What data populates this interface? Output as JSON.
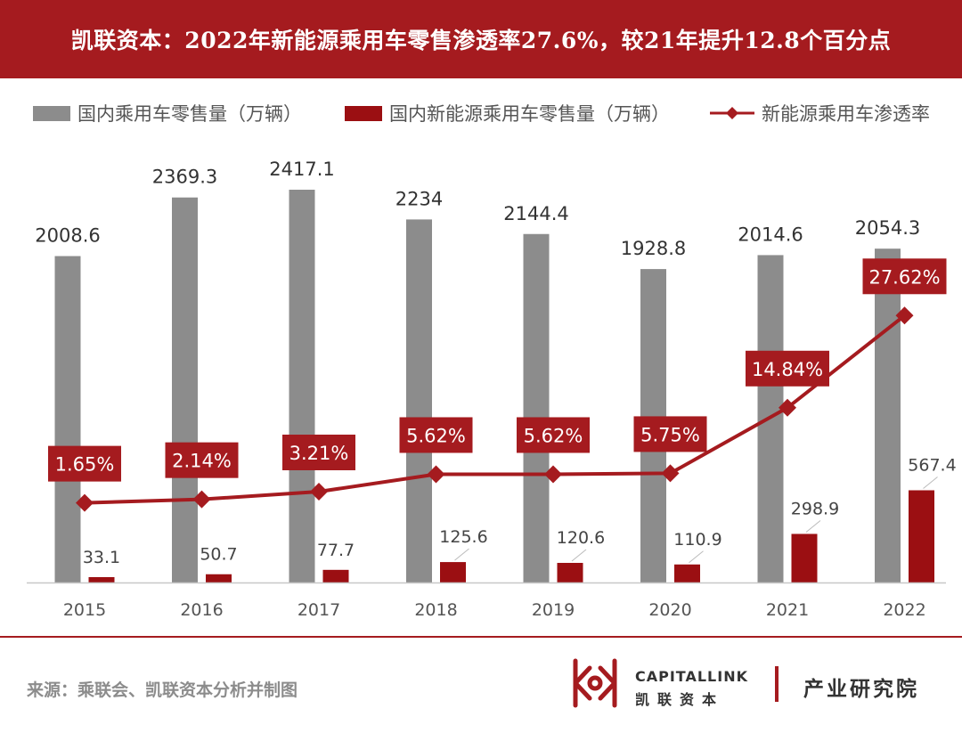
{
  "header": {
    "title": "凯联资本：2022年新能源乘用车零售渗透率27.6%，较21年提升12.8个百分点"
  },
  "colors": {
    "brand": "#a51b1f",
    "gray_bar": "#8c8c8c",
    "red_bar": "#9b0f12",
    "line": "#a51b1f"
  },
  "chart_data": {
    "type": "bar",
    "categories": [
      "2015",
      "2016",
      "2017",
      "2018",
      "2019",
      "2020",
      "2021",
      "2022"
    ],
    "series": [
      {
        "name": "国内乘用车零售量（万辆）",
        "type": "bar",
        "axis": "left",
        "values": [
          2008.6,
          2369.3,
          2417.1,
          2234,
          2144.4,
          1928.8,
          2014.6,
          2054.3
        ],
        "labels": [
          "2008.6",
          "2369.3",
          "2417.1",
          "2234",
          "2144.4",
          "1928.8",
          "2014.6",
          "2054.3"
        ]
      },
      {
        "name": "国内新能源乘用车零售量（万辆）",
        "type": "bar",
        "axis": "left",
        "values": [
          33.1,
          50.7,
          77.7,
          125.6,
          120.6,
          110.9,
          298.9,
          567.4
        ],
        "labels": [
          "33.1",
          "50.7",
          "77.7",
          "125.6",
          "120.6",
          "110.9",
          "298.9",
          "567.4"
        ]
      },
      {
        "name": "新能源乘用车渗透率",
        "type": "line",
        "axis": "right",
        "values": [
          1.65,
          2.14,
          3.21,
          5.62,
          5.62,
          5.75,
          14.84,
          27.62
        ],
        "labels": [
          "1.65%",
          "2.14%",
          "3.21%",
          "5.62%",
          "5.62%",
          "5.75%",
          "14.84%",
          "27.62%"
        ]
      }
    ],
    "legend_position": "top",
    "grid": false
  },
  "footer": {
    "source": "来源：乘联会、凯联资本分析并制图",
    "brand_en": "CAPITALLINK",
    "brand_cn": "凯联资本",
    "institute": "产业研究院"
  }
}
